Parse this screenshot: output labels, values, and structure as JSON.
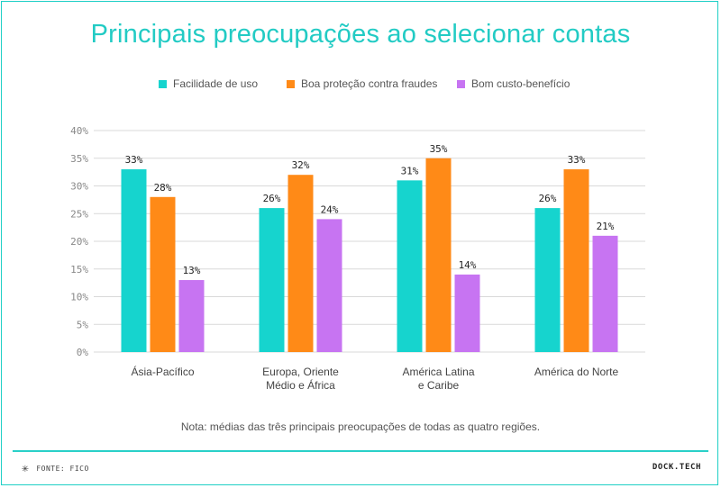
{
  "title": "Principais preocupações ao selecionar contas",
  "note": "Nota: médias das três principais preocupações de todas as quatro regiões.",
  "footer": {
    "source_icon": "asterisk-icon",
    "source": "FONTE: FICO",
    "brand": "DOCK.TECH"
  },
  "colors": {
    "accent": "#22cbc4",
    "series": [
      "#16d4ce",
      "#ff8a17",
      "#c774f2"
    ]
  },
  "chart_data": {
    "type": "bar",
    "title": "Principais preocupações ao selecionar contas",
    "categories": [
      [
        "Ásia-Pacífico"
      ],
      [
        "Europa, Oriente",
        "Médio e África"
      ],
      [
        "América Latina",
        "e Caribe"
      ],
      [
        "América do Norte"
      ]
    ],
    "series": [
      {
        "name": "Facilidade de uso",
        "values": [
          33,
          26,
          31,
          26
        ],
        "labels": [
          "33%",
          "26%",
          "31%",
          "26%"
        ]
      },
      {
        "name": "Boa proteção contra fraudes",
        "values": [
          28,
          32,
          35,
          33
        ],
        "labels": [
          "28%",
          "32%",
          "35%",
          "33%"
        ]
      },
      {
        "name": "Bom custo-benefício",
        "values": [
          13,
          24,
          14,
          21
        ],
        "labels": [
          "13%",
          "24%",
          "14%",
          "21%"
        ]
      }
    ],
    "ylim": [
      0,
      40
    ],
    "yticks": [
      "0%",
      "5%",
      "10%",
      "15%",
      "20%",
      "25%",
      "30%",
      "35%",
      "40%"
    ],
    "grid": true,
    "legend_position": "top-center"
  }
}
